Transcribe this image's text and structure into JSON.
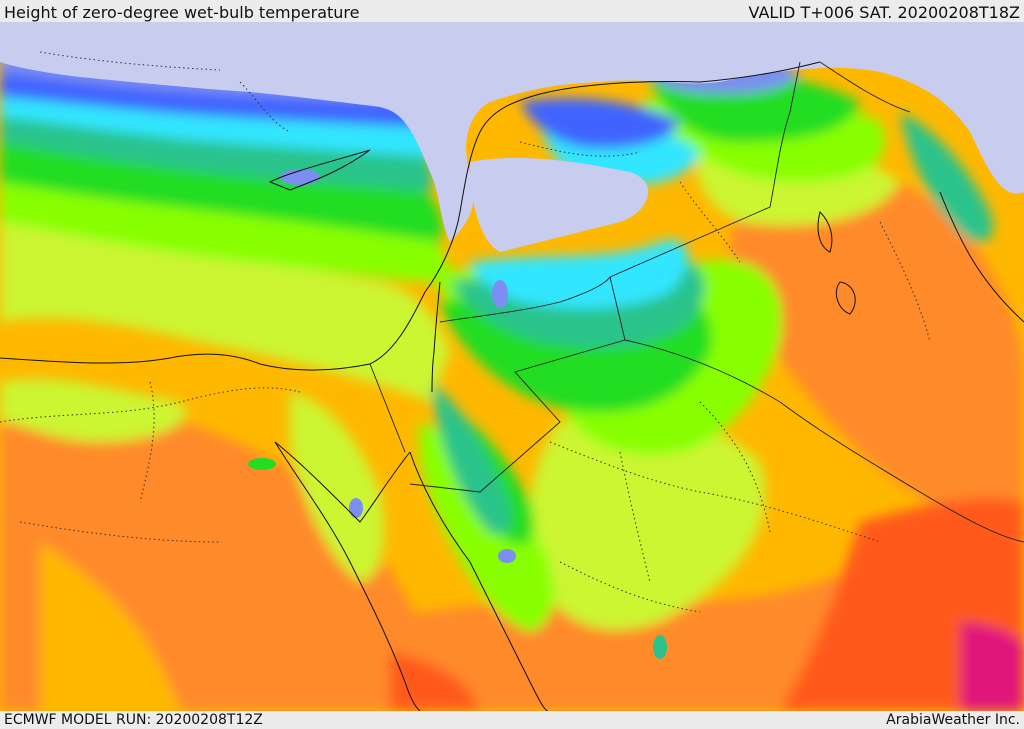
{
  "header": {
    "title": "Height of zero-degree wet-bulb temperature",
    "valid": "VALID T+006 SAT. 20200208T18Z"
  },
  "footer": {
    "model_run": "ECMWF MODEL RUN: 20200208T12Z",
    "credit": "ArabiaWeather Inc."
  },
  "colors": {
    "lavender": "#c8ccef",
    "periwinkle": "#7c8ef2",
    "blue": "#3f63ff",
    "cyan_bright": "#33e6ff",
    "teal": "#2bc38b",
    "green": "#22dd22",
    "lime": "#88ff00",
    "yellow_green": "#ccf533",
    "orange_yellow": "#ffb800",
    "orange": "#ff8a2a",
    "red_orange": "#ff5a1e",
    "magenta": "#e0197a"
  }
}
